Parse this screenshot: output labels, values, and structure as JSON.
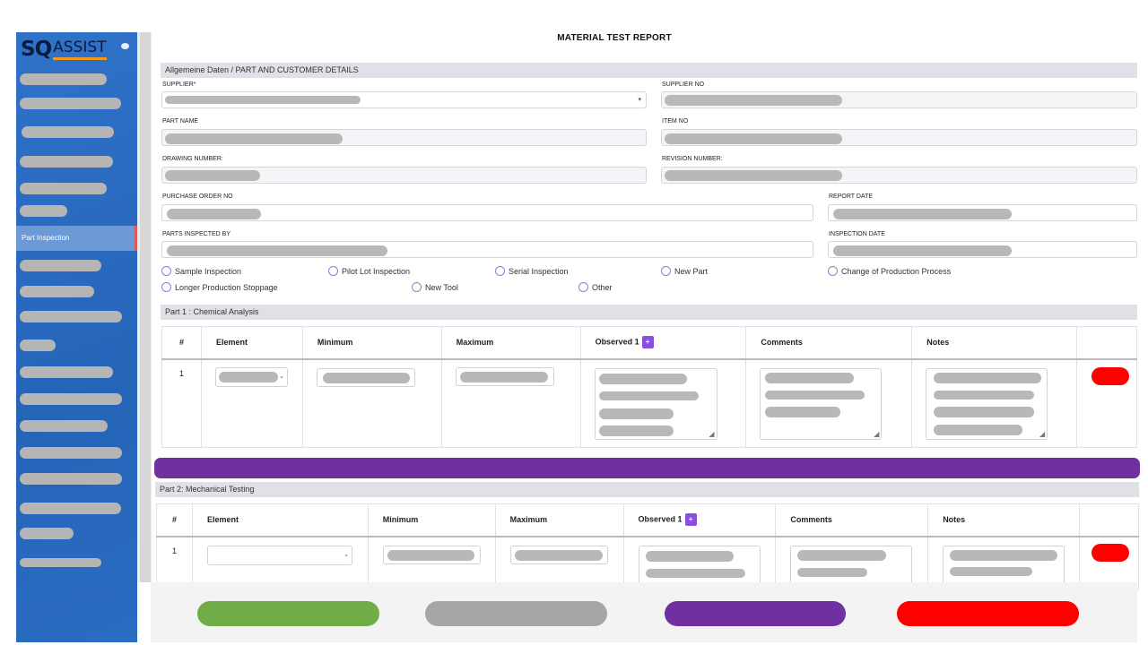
{
  "app": {
    "logo_sq": "SQ",
    "logo_assist": "ASSIST"
  },
  "sidebar": {
    "active_item": "Part Inspection"
  },
  "page": {
    "title": "MATERIAL TEST REPORT"
  },
  "details": {
    "section_title": "Allgemeine Daten / PART AND CUSTOMER DETAILS",
    "supplier_label": "SUPPLIER*",
    "supplier_no_label": "SUPPLIER NO",
    "part_name_label": "PART NAME",
    "item_no_label": "ITEM NO",
    "drawing_number_label": "DRAWING NUMBER:",
    "revision_number_label": "REVISION NUMBER:",
    "po_label": "PURCHASE ORDER NO",
    "report_date_label": "REPORT DATE",
    "inspected_by_label": "PARTS INSPECTED BY",
    "inspection_date_label": "INSPECTION DATE"
  },
  "inspection_types": [
    "Sample Inspection",
    "Pilot Lot Inspection",
    "Serial Inspection",
    "New Part",
    "Change of Production Process",
    "Longer Production Stoppage",
    "New Tool",
    "Other"
  ],
  "part1": {
    "title": "Part 1 : Chemical Analysis",
    "headers": [
      "#",
      "Element",
      "Minimum",
      "Maximum",
      "Observed 1",
      "Comments",
      "Notes"
    ],
    "plus": "+",
    "row_num": "1"
  },
  "part2": {
    "title": "Part 2: Mechanical Testing",
    "headers": [
      "#",
      "Element",
      "Minimum",
      "Maximum",
      "Observed 1",
      "Comments",
      "Notes"
    ],
    "plus": "+",
    "row_num": "1"
  },
  "colors": {
    "sidebar": "#2c6bc0",
    "accent_purple": "#7030a0",
    "save_green": "#70ad47",
    "neutral_gray": "#a6a6a6",
    "danger_red": "#ff0000"
  }
}
